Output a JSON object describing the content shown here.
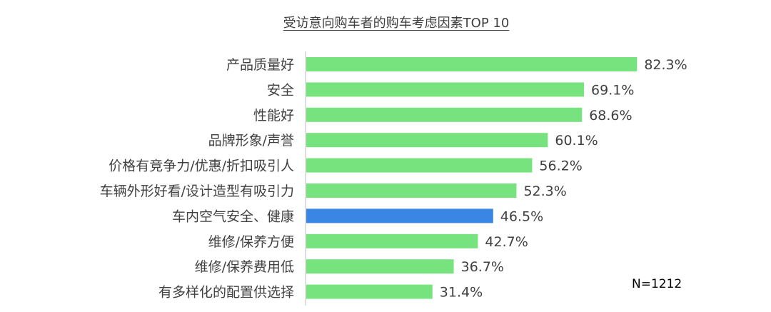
{
  "chart_data": {
    "type": "bar",
    "orientation": "horizontal",
    "title": "受访意向购车者的购车考虑因素TOP 10",
    "categories": [
      "产品质量好",
      "安全",
      "性能好",
      "品牌形象/声誉",
      "价格有竞争力/优惠/折扣吸引人",
      "车辆外形好看/设计造型有吸引力",
      "车内空气安全、健康",
      "维修/保养方便",
      "维修/保养费用低",
      "有多样化的配置供选择"
    ],
    "values": [
      82.3,
      69.1,
      68.6,
      60.1,
      56.2,
      52.3,
      46.5,
      42.7,
      36.7,
      31.4
    ],
    "value_labels": [
      "82.3%",
      "69.1%",
      "68.6%",
      "60.1%",
      "56.2%",
      "52.3%",
      "46.5%",
      "42.7%",
      "36.7%",
      "31.4%"
    ],
    "highlight_category": "车内空气安全、健康",
    "colors": {
      "bar": "#77E37F",
      "highlight": "#3A86E5",
      "axis": "#BFBFBF",
      "text": "#404040"
    },
    "xlim": [
      0,
      100
    ],
    "grid": false,
    "legend": "none",
    "annotation": "N=1212"
  }
}
